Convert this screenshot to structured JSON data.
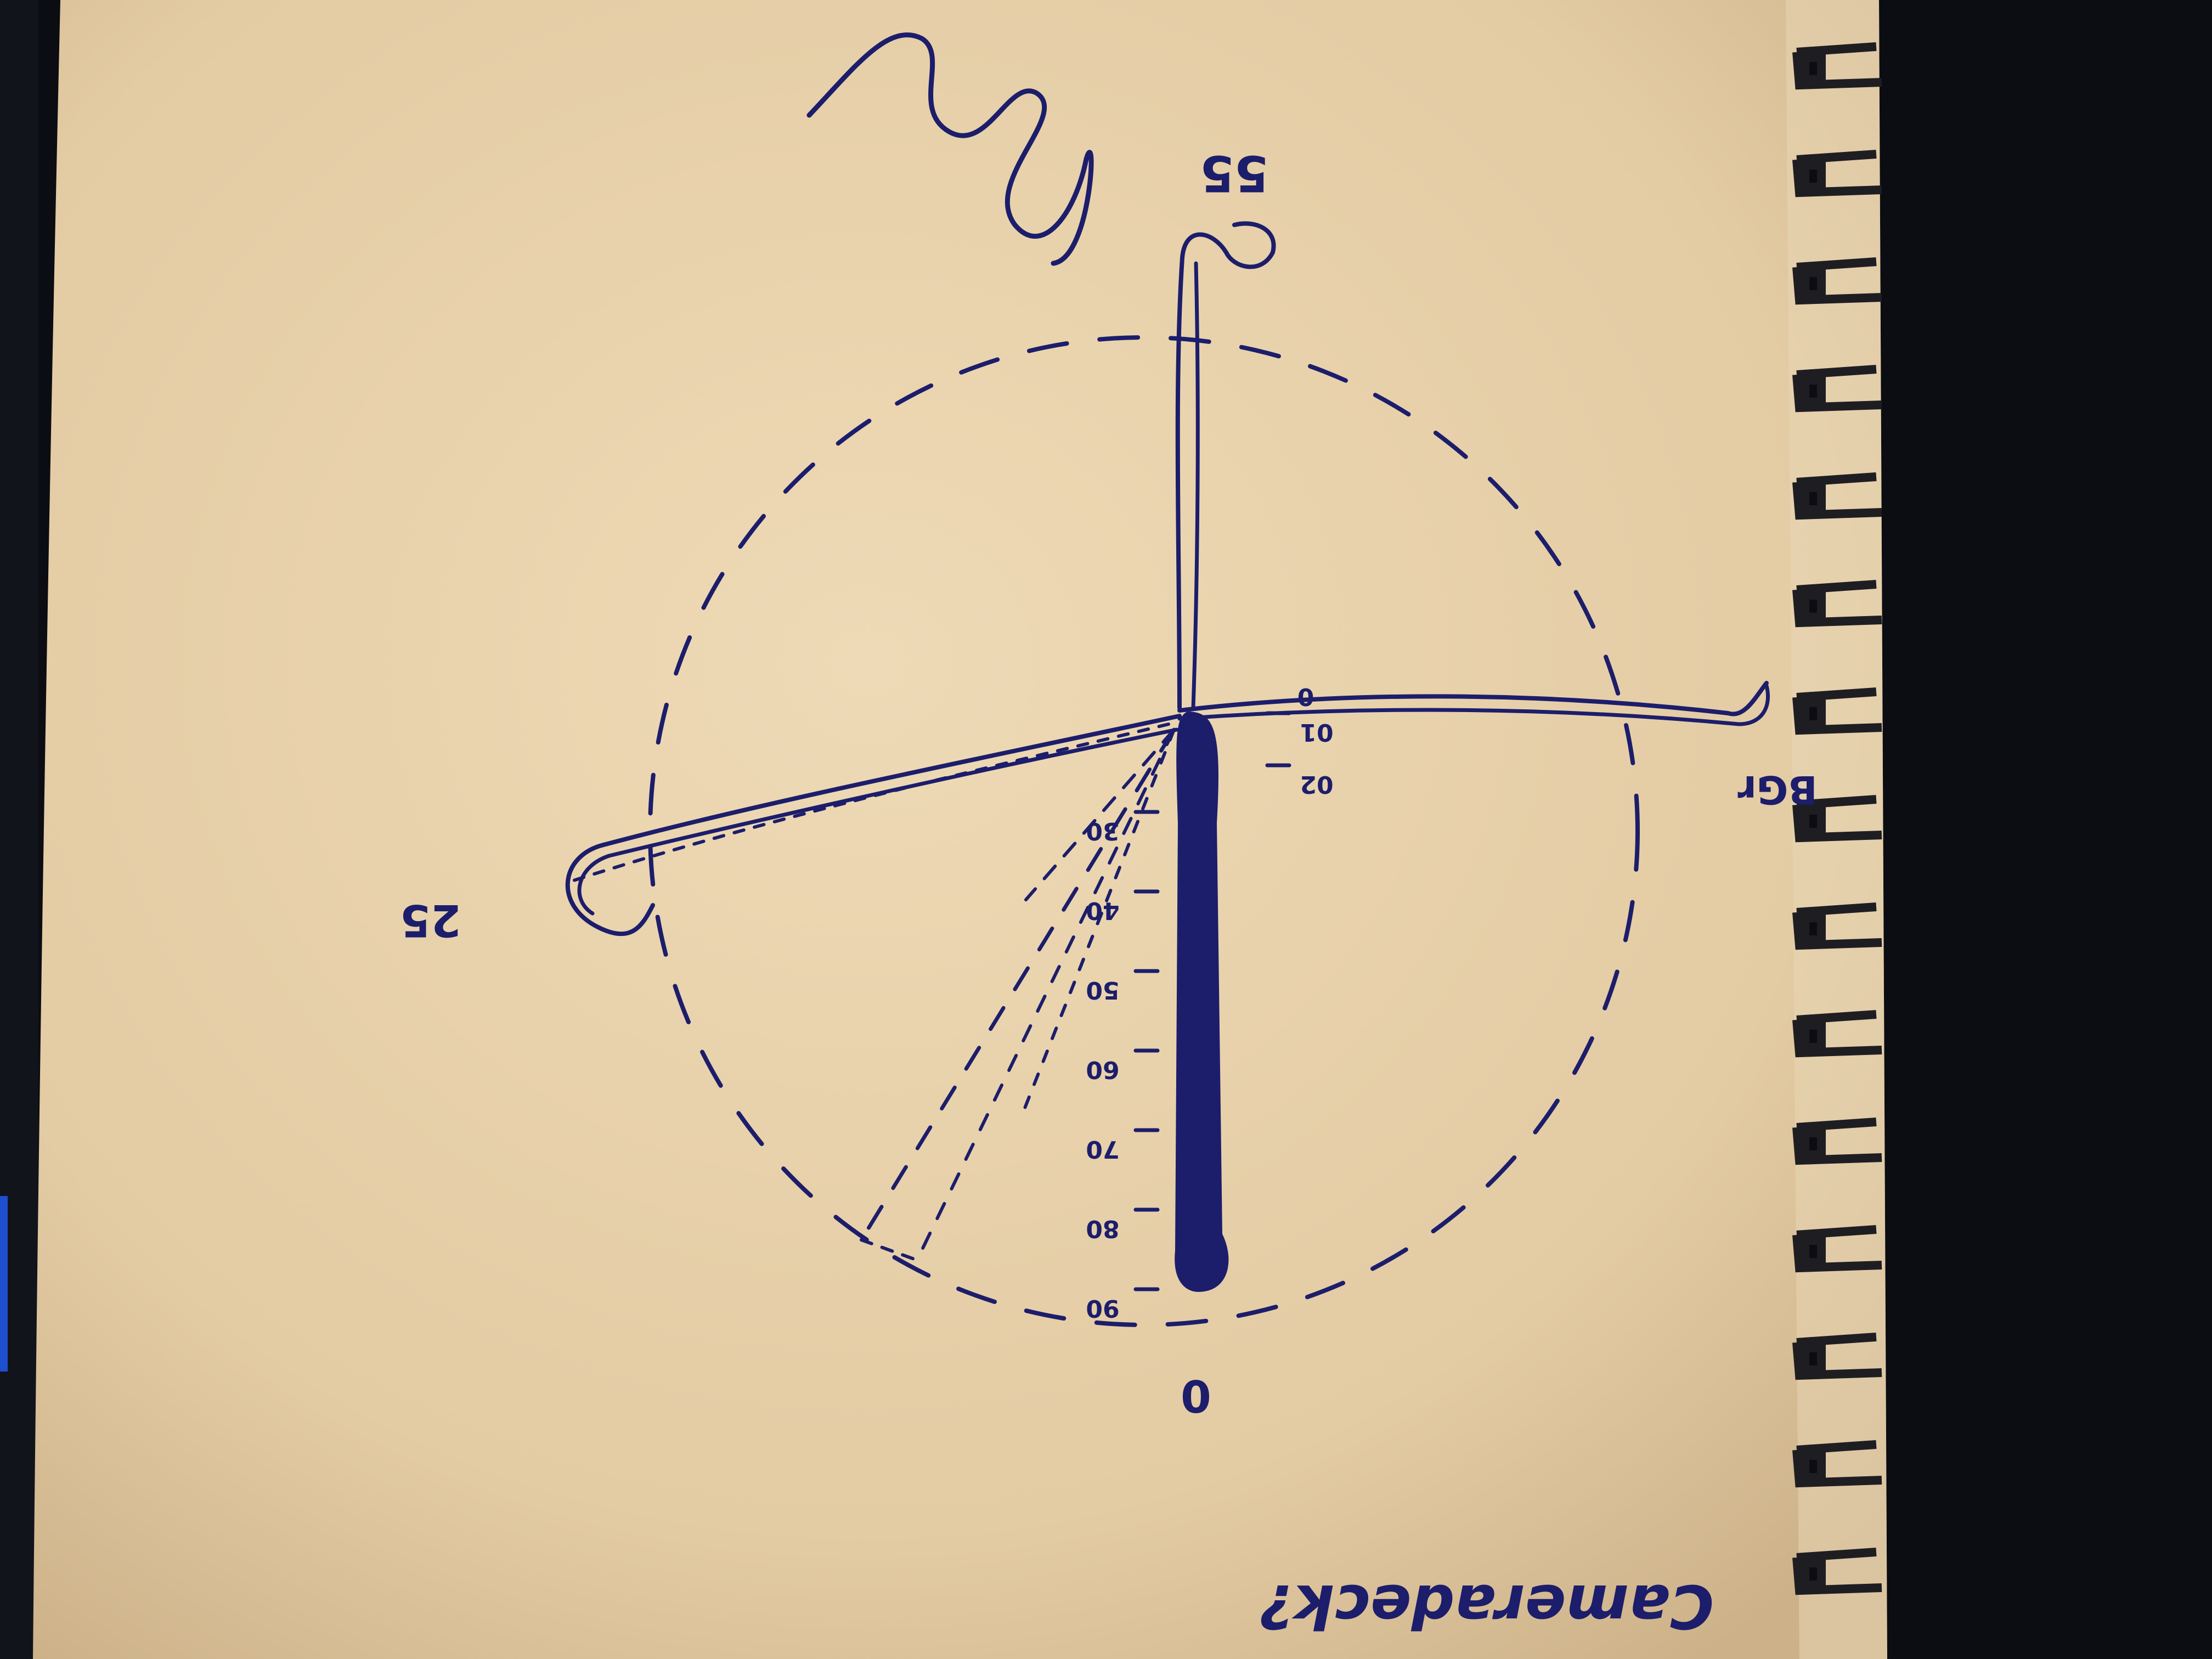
{
  "sketch": {
    "top_label": "55",
    "left_label": "25",
    "right_label": "BGr",
    "bottom_label": "0",
    "caption": "Cameradeck?",
    "scale_marks": [
      "0",
      "01",
      "02",
      "30",
      "40",
      "50",
      "60",
      "70",
      "80",
      "90"
    ]
  },
  "colors": {
    "paper": "#e8d2ac",
    "ink": "#1c1d6b",
    "background": "#0c0d12",
    "binding": "#2a2a2e"
  }
}
